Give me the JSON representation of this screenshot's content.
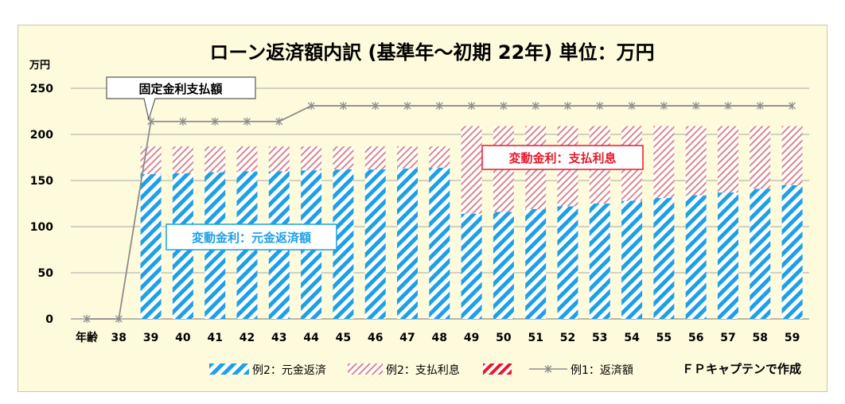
{
  "colors": {
    "background": "#fdfbdc",
    "principal": "#1ea0e6",
    "interest": "#d9888e",
    "interest_legend2": "#e8182a",
    "line": "#8c8c8c",
    "grid": "#a6a6a6",
    "annotation_red": "#e8182a",
    "annotation_blue": "#1ea0e6"
  },
  "chart_data": {
    "type": "bar",
    "stacked": true,
    "title": "ローン返済額内訳 (基準年～初期 22年) 単位：万円",
    "ylabel": "万円",
    "xlabel": "年齢",
    "ylim": [
      0,
      250
    ],
    "yticks": [
      0,
      50,
      100,
      150,
      200,
      250
    ],
    "grid": true,
    "legend_position": "bottom",
    "categories": [
      "38",
      "39",
      "40",
      "41",
      "42",
      "43",
      "44",
      "45",
      "46",
      "47",
      "48",
      "49",
      "50",
      "51",
      "52",
      "53",
      "54",
      "55",
      "56",
      "57",
      "58",
      "59"
    ],
    "series": [
      {
        "name": "例2：元金返済",
        "kind": "bar",
        "values": [
          0,
          157,
          158,
          159,
          160,
          160,
          161,
          162,
          162,
          163,
          164,
          114,
          116,
          119,
          122,
          125,
          128,
          131,
          134,
          137,
          141,
          145
        ]
      },
      {
        "name": "例2：支払利息",
        "kind": "bar",
        "values": [
          0,
          30,
          29,
          28,
          27,
          27,
          26,
          25,
          25,
          24,
          23,
          95,
          93,
          90,
          87,
          84,
          81,
          78,
          75,
          72,
          68,
          64
        ]
      },
      {
        "name": "",
        "kind": "legend-only"
      },
      {
        "name": "例1：返済額",
        "kind": "line",
        "x": [
          "37",
          "38",
          "39",
          "40",
          "41",
          "42",
          "43",
          "44",
          "45",
          "46",
          "47",
          "48",
          "49",
          "50",
          "51",
          "52",
          "53",
          "54",
          "55",
          "56",
          "57",
          "58",
          "59"
        ],
        "values": [
          0,
          0,
          214,
          214,
          214,
          214,
          214,
          231,
          231,
          231,
          231,
          231,
          231,
          231,
          231,
          231,
          231,
          231,
          231,
          231,
          231,
          231,
          231
        ]
      }
    ],
    "annotations": [
      {
        "id": "fixed",
        "text": "固定金利支払額",
        "style": "gray-callout"
      },
      {
        "id": "interest",
        "text": "変動金利：支払利息",
        "style": "red-box"
      },
      {
        "id": "principal",
        "text": "変動金利：元金返済額",
        "style": "blue-box"
      }
    ],
    "credit": "ＦＰキャプテンで作成"
  }
}
